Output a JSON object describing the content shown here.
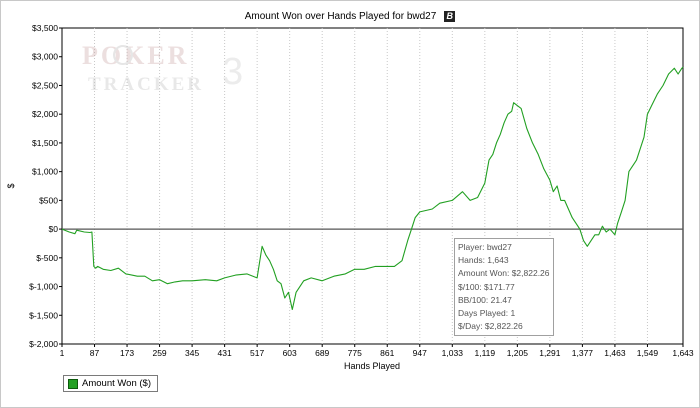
{
  "header": {
    "title": "Amount Won over Hands Played for bwd27",
    "badge": "B"
  },
  "watermark": {
    "line1": "POKER",
    "line2": "TRACKER",
    "version": "3"
  },
  "stats_box": {
    "player": "Player: bwd27",
    "hands": "Hands: 1,643",
    "amount_won": "Amount Won: $2,822.26",
    "per100": "$/100: $171.77",
    "bb100": "BB/100: 21.47",
    "days_played": "Days Played: 1",
    "per_day": "$/Day: $2,822.26"
  },
  "legend": {
    "label": "Amount Won ($)"
  },
  "colors": {
    "line": "#22a022",
    "zero_line": "#555555",
    "grid": "#c8c8c8"
  },
  "chart_data": {
    "type": "line",
    "xlabel": "Hands Played",
    "ylabel": "$",
    "xlim": [
      1,
      1643
    ],
    "ylim": [
      -2000,
      3500
    ],
    "x_ticks": [
      1,
      87,
      173,
      259,
      345,
      431,
      517,
      603,
      689,
      775,
      861,
      947,
      1033,
      1119,
      1205,
      1291,
      1377,
      1463,
      1549,
      1643
    ],
    "x_tick_labels": [
      "1",
      "87",
      "173",
      "259",
      "345",
      "431",
      "517",
      "603",
      "689",
      "775",
      "861",
      "947",
      "1,033",
      "1,119",
      "1,205",
      "1,291",
      "1,377",
      "1,463",
      "1,549",
      "1,643"
    ],
    "y_ticks": [
      -2000,
      -1500,
      -1000,
      -500,
      0,
      500,
      1000,
      1500,
      2000,
      2500,
      3000,
      3500
    ],
    "y_tick_labels": [
      "$-2,000",
      "$-1,500",
      "$-1,000",
      "$-500",
      "$0",
      "$500",
      "$1,000",
      "$1,500",
      "$2,000",
      "$2,500",
      "$3,000",
      "$3,500"
    ],
    "grid": "vertical dotted",
    "legend_position": "bottom-left",
    "series": [
      {
        "name": "Amount Won ($)",
        "x": [
          1,
          20,
          35,
          40,
          60,
          75,
          80,
          85,
          90,
          95,
          110,
          130,
          150,
          170,
          200,
          220,
          240,
          259,
          280,
          300,
          320,
          345,
          380,
          410,
          431,
          460,
          490,
          517,
          530,
          540,
          550,
          560,
          570,
          580,
          590,
          600,
          610,
          620,
          640,
          660,
          689,
          720,
          750,
          775,
          800,
          830,
          861,
          880,
          900,
          915,
          925,
          935,
          947,
          980,
          1000,
          1033,
          1060,
          1080,
          1100,
          1119,
          1130,
          1140,
          1150,
          1160,
          1170,
          1180,
          1190,
          1195,
          1205,
          1215,
          1230,
          1245,
          1260,
          1275,
          1291,
          1300,
          1310,
          1320,
          1330,
          1340,
          1350,
          1360,
          1370,
          1380,
          1390,
          1400,
          1410,
          1420,
          1430,
          1440,
          1450,
          1463,
          1470,
          1480,
          1490,
          1500,
          1520,
          1540,
          1549,
          1560,
          1575,
          1590,
          1605,
          1620,
          1630,
          1640,
          1643
        ],
        "y": [
          0,
          -50,
          -80,
          -20,
          -50,
          -60,
          -50,
          -650,
          -680,
          -650,
          -700,
          -720,
          -680,
          -780,
          -820,
          -820,
          -900,
          -880,
          -950,
          -920,
          -900,
          -900,
          -880,
          -900,
          -850,
          -800,
          -780,
          -850,
          -300,
          -450,
          -550,
          -700,
          -900,
          -950,
          -1200,
          -1100,
          -1400,
          -1100,
          -900,
          -850,
          -900,
          -820,
          -780,
          -700,
          -700,
          -650,
          -650,
          -650,
          -550,
          -200,
          0,
          200,
          300,
          350,
          450,
          500,
          650,
          500,
          550,
          800,
          1200,
          1300,
          1500,
          1650,
          1850,
          2000,
          2050,
          2200,
          2150,
          2100,
          1750,
          1500,
          1300,
          1050,
          850,
          650,
          750,
          500,
          500,
          350,
          200,
          100,
          0,
          -200,
          -300,
          -200,
          -100,
          -100,
          50,
          -50,
          0,
          -100,
          100,
          300,
          500,
          1000,
          1200,
          1600,
          2000,
          2150,
          2350,
          2500,
          2700,
          2800,
          2700,
          2800,
          2822
        ]
      }
    ]
  }
}
